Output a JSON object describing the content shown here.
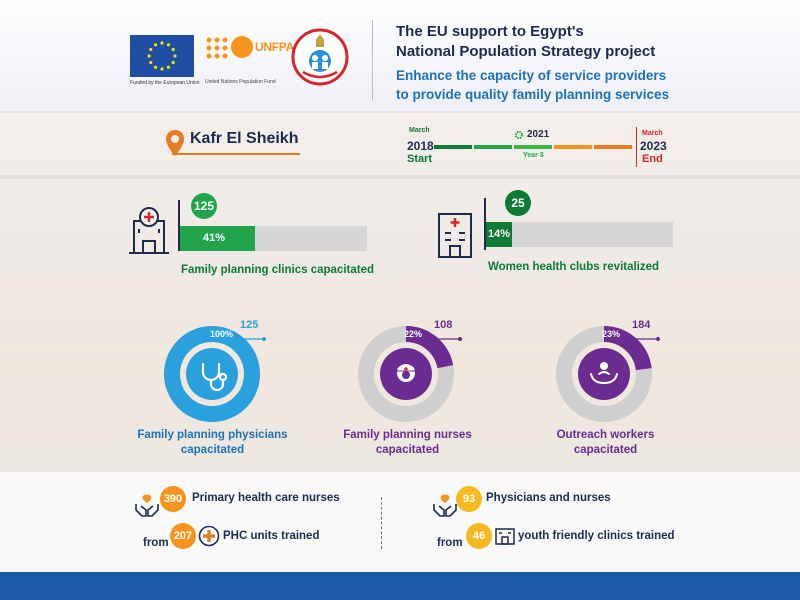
{
  "header": {
    "eu_caption": "Funded by the European Union",
    "unfpa_word": "UNFPA",
    "unfpa_caption": "United Nations Population Fund",
    "title_line1": "The EU support to Egypt's",
    "title_line2": "National Population Strategy project",
    "subtitle_line1": "Enhance the capacity of service providers",
    "subtitle_line2": "to provide quality family planning services"
  },
  "location": {
    "name": "Kafr El Sheikh"
  },
  "timeline": {
    "start_month": "March",
    "start_year": "2018",
    "start_label": "Start",
    "current_year": "2021",
    "current_label": "Year 3",
    "end_month": "March",
    "end_year": "2023",
    "end_label": "End",
    "progress_fraction": 0.6
  },
  "clinics": {
    "count": "125",
    "percent": "41%",
    "percent_value": 41,
    "label": "Family planning clinics capacitated"
  },
  "clubs": {
    "count": "25",
    "percent": "14%",
    "percent_value": 14,
    "label": "Women health clubs revitalized"
  },
  "rings": [
    {
      "count": "125",
      "percent": "100%",
      "percent_value": 100,
      "label_line1": "Family planning physicians",
      "label_line2": "capacitated",
      "color": "#2aa1dc",
      "icon": "stethoscope-icon"
    },
    {
      "count": "108",
      "percent": "22%",
      "percent_value": 22,
      "label_line1": "Family planning nurses",
      "label_line2": "capacitated",
      "color": "#6a2c91",
      "icon": "nurse-icon"
    },
    {
      "count": "184",
      "percent": "23%",
      "percent_value": 23,
      "label_line1": "Outreach workers",
      "label_line2": "capacitated",
      "color": "#6a2c91",
      "icon": "family-care-icon"
    }
  ],
  "bottom": {
    "left_count1": "390",
    "left_text1": "Primary health care nurses",
    "left_from": "from",
    "left_count2": "207",
    "left_text2": "PHC units trained",
    "right_count1": "93",
    "right_text1": "Physicians and nurses",
    "right_from": "from",
    "right_count2": "46",
    "right_text2": "youth friendly clinics trained"
  },
  "colors": {
    "navy": "#1d2b4f",
    "blue": "#1d72b8",
    "green": "#21a54a",
    "dark_green": "#0d7a36",
    "orange": "#f7941d",
    "purple": "#6a2c91",
    "cyan": "#2aa1dc",
    "footer": "#1a5aa6"
  }
}
